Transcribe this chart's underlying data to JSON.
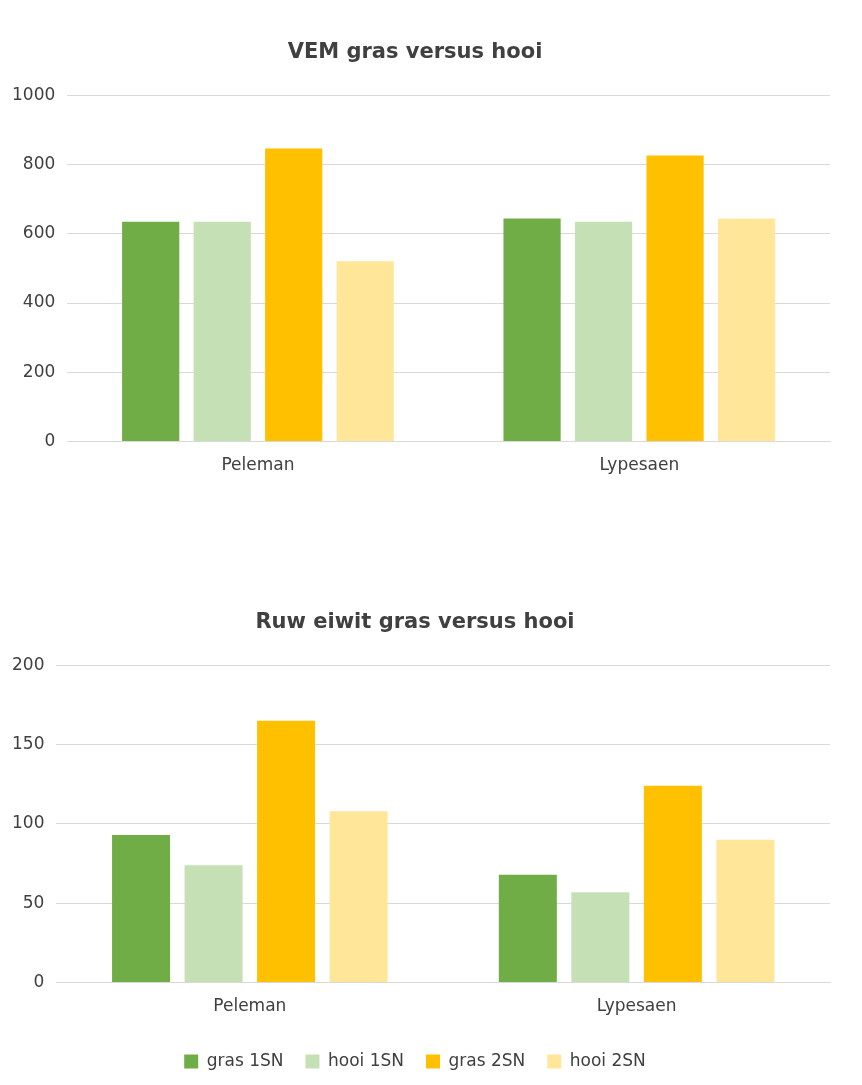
{
  "chart_data": [
    {
      "type": "bar",
      "title": "VEM gras versus hooi",
      "categories": [
        "Peleman",
        "Lypesaen"
      ],
      "series": [
        {
          "color": "#70ad47",
          "values": [
            635,
            644
          ]
        },
        {
          "color": "#c5e0b4",
          "values": [
            635,
            635
          ]
        },
        {
          "color": "#ffc000",
          "values": [
            846,
            826
          ]
        },
        {
          "color": "#ffe699",
          "values": [
            521,
            644
          ]
        }
      ],
      "ylim": [
        0,
        1000
      ],
      "yticks": [
        0,
        200,
        400,
        600,
        800,
        1000
      ],
      "grid": "y",
      "legend": false
    },
    {
      "type": "bar",
      "title": "Ruw eiwit gras versus hooi",
      "categories": [
        "Peleman",
        "Lypesaen"
      ],
      "series": [
        {
          "name": "gras 1SN",
          "color": "#70ad47",
          "values": [
            93,
            68
          ]
        },
        {
          "name": "hooi 1SN",
          "color": "#c5e0b4",
          "values": [
            74,
            57
          ]
        },
        {
          "name": "gras 2SN",
          "color": "#ffc000",
          "values": [
            165,
            124
          ]
        },
        {
          "name": "hooi 2SN",
          "color": "#ffe699",
          "values": [
            108,
            90
          ]
        }
      ],
      "ylim": [
        0,
        200
      ],
      "yticks": [
        0,
        50,
        100,
        150,
        200
      ],
      "grid": "y",
      "legend": "bottom"
    }
  ]
}
